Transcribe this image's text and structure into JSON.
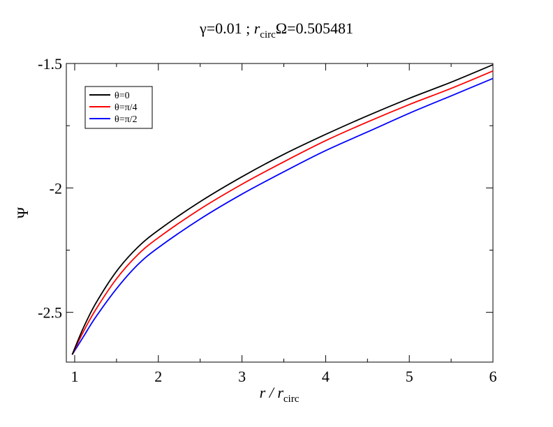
{
  "chart_data": {
    "type": "line",
    "title_parts": {
      "gamma_eq": "γ=0.01 ; ",
      "r_sym": "r",
      "r_sub": "circ",
      "omega_eq": "Ω=0.505481"
    },
    "xlabel_parts": {
      "r_sym": "r",
      "sep": " / ",
      "r2_sym": "r",
      "r_sub": "circ"
    },
    "ylabel": "Ψ",
    "xlim": [
      0.9,
      6
    ],
    "ylim": [
      -2.7,
      -1.5
    ],
    "x_ticks": [
      1,
      2,
      3,
      4,
      5,
      6
    ],
    "x_tick_labels": [
      "1",
      "2",
      "3",
      "4",
      "5",
      "6"
    ],
    "y_ticks": [
      -2.5,
      -2,
      -1.5
    ],
    "y_tick_labels": [
      "-2.5",
      "-2",
      "-1.5"
    ],
    "grid": false,
    "legend_position": "top-left",
    "series": [
      {
        "name": "θ=0",
        "color": "#000000",
        "x": [
          0.97,
          1.1,
          1.25,
          1.5,
          1.75,
          2.0,
          2.5,
          3.0,
          3.5,
          4.0,
          4.5,
          5.0,
          5.5,
          6.0
        ],
        "y": [
          -2.67,
          -2.565,
          -2.465,
          -2.335,
          -2.24,
          -2.17,
          -2.055,
          -1.955,
          -1.865,
          -1.785,
          -1.71,
          -1.64,
          -1.575,
          -1.505
        ]
      },
      {
        "name": "θ=π/4",
        "color": "#ff0000",
        "x": [
          0.97,
          1.1,
          1.25,
          1.5,
          1.75,
          2.0,
          2.5,
          3.0,
          3.5,
          4.0,
          4.5,
          5.0,
          5.5,
          6.0
        ],
        "y": [
          -2.67,
          -2.58,
          -2.49,
          -2.365,
          -2.27,
          -2.2,
          -2.085,
          -1.985,
          -1.895,
          -1.81,
          -1.735,
          -1.665,
          -1.6,
          -1.53
        ]
      },
      {
        "name": "θ=π/2",
        "color": "#0000ff",
        "x": [
          0.97,
          1.1,
          1.25,
          1.5,
          1.75,
          2.0,
          2.5,
          3.0,
          3.5,
          4.0,
          4.5,
          5.0,
          5.5,
          6.0
        ],
        "y": [
          -2.67,
          -2.6,
          -2.52,
          -2.405,
          -2.31,
          -2.24,
          -2.125,
          -2.025,
          -1.935,
          -1.85,
          -1.775,
          -1.7,
          -1.63,
          -1.56
        ]
      }
    ]
  }
}
